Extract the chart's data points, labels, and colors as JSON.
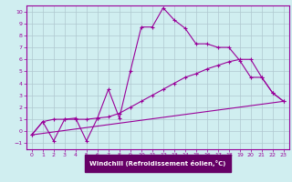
{
  "title": "",
  "xlabel": "Windchill (Refroidissement éolien,°C)",
  "bg_color": "#d0eef0",
  "line_color": "#990099",
  "grid_color": "#b0c8d0",
  "xlabel_bg": "#660066",
  "xlabel_fg": "#ffffff",
  "xlim": [
    -0.5,
    23.5
  ],
  "ylim": [
    -1.5,
    10.5
  ],
  "xticks": [
    0,
    1,
    2,
    3,
    4,
    5,
    6,
    7,
    8,
    9,
    10,
    11,
    12,
    13,
    14,
    15,
    16,
    17,
    18,
    19,
    20,
    21,
    22,
    23
  ],
  "yticks": [
    -1,
    0,
    1,
    2,
    3,
    4,
    5,
    6,
    7,
    8,
    9,
    10
  ],
  "lines": [
    [
      [
        0,
        -0.3
      ],
      [
        1,
        0.8
      ],
      [
        2,
        -0.8
      ],
      [
        3,
        1.0
      ],
      [
        4,
        1.1
      ],
      [
        5,
        -0.8
      ],
      [
        6,
        1.1
      ],
      [
        7,
        3.5
      ],
      [
        8,
        1.1
      ],
      [
        9,
        5.0
      ],
      [
        10,
        8.7
      ],
      [
        11,
        8.7
      ],
      [
        12,
        10.3
      ],
      [
        13,
        9.3
      ],
      [
        14,
        8.6
      ],
      [
        15,
        7.3
      ],
      [
        16,
        7.3
      ],
      [
        17,
        7.0
      ],
      [
        18,
        7.0
      ],
      [
        19,
        5.9
      ],
      [
        20,
        4.5
      ],
      [
        21,
        4.5
      ],
      [
        22,
        3.2
      ],
      [
        23,
        2.5
      ]
    ],
    [
      [
        0,
        -0.3
      ],
      [
        1,
        0.8
      ],
      [
        2,
        1.0
      ],
      [
        3,
        1.0
      ],
      [
        4,
        1.0
      ],
      [
        5,
        1.0
      ],
      [
        6,
        1.1
      ],
      [
        7,
        1.2
      ],
      [
        8,
        1.5
      ],
      [
        9,
        2.0
      ],
      [
        10,
        2.5
      ],
      [
        11,
        3.0
      ],
      [
        12,
        3.5
      ],
      [
        13,
        4.0
      ],
      [
        14,
        4.5
      ],
      [
        15,
        4.8
      ],
      [
        16,
        5.2
      ],
      [
        17,
        5.5
      ],
      [
        18,
        5.8
      ],
      [
        19,
        6.0
      ],
      [
        20,
        6.0
      ],
      [
        21,
        4.5
      ],
      [
        22,
        3.2
      ],
      [
        23,
        2.5
      ]
    ],
    [
      [
        0,
        -0.3
      ],
      [
        23,
        2.5
      ]
    ]
  ]
}
